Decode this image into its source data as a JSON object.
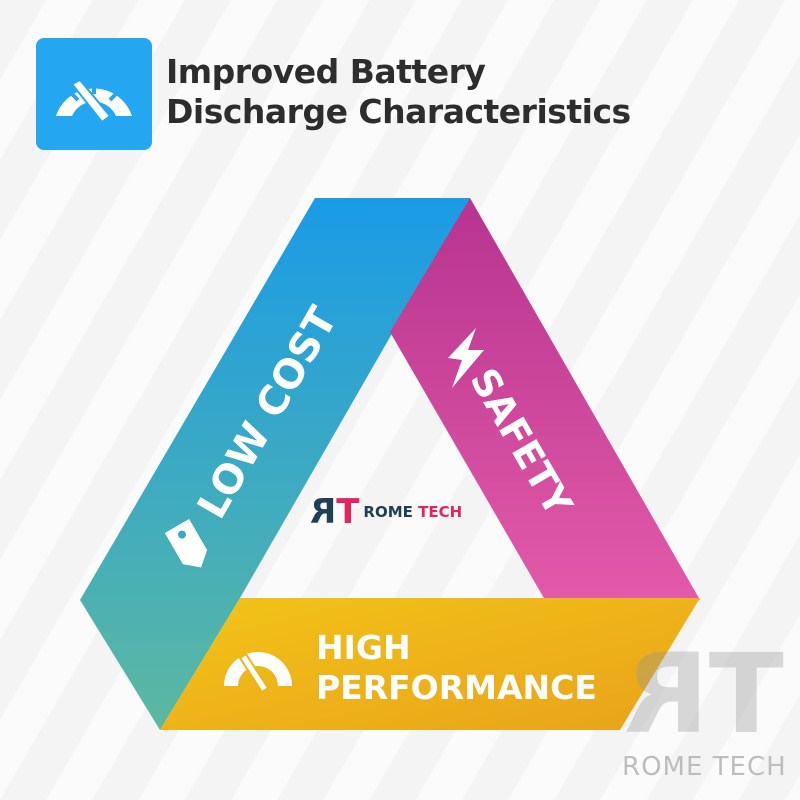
{
  "header": {
    "icon": "speedometer-icon",
    "title_line1": "Improved Battery",
    "title_line2": "Discharge Characteristics",
    "accent": "#24a6f0"
  },
  "diagram": {
    "low_cost": {
      "label": "LOW COST",
      "icon": "price-tag-icon",
      "colors": [
        "#1a9be6",
        "#5cb8a0"
      ]
    },
    "safety": {
      "label": "SAFETY",
      "icon": "lightning-bolt-icon",
      "colors": [
        "#b7348f",
        "#e25aa8"
      ]
    },
    "high_performance": {
      "line1": "HIGH",
      "line2": "PERFORMANCE",
      "icon": "speedometer-icon",
      "colors": [
        "#f2c418",
        "#e9a21a"
      ]
    }
  },
  "logo": {
    "mark": "RT",
    "word1": "ROME",
    "word2": "TECH",
    "colors": {
      "dark": "#1f3f55",
      "pink": "#e2245f"
    }
  },
  "watermark": {
    "mark": "RT",
    "text": "ROME TECH"
  }
}
